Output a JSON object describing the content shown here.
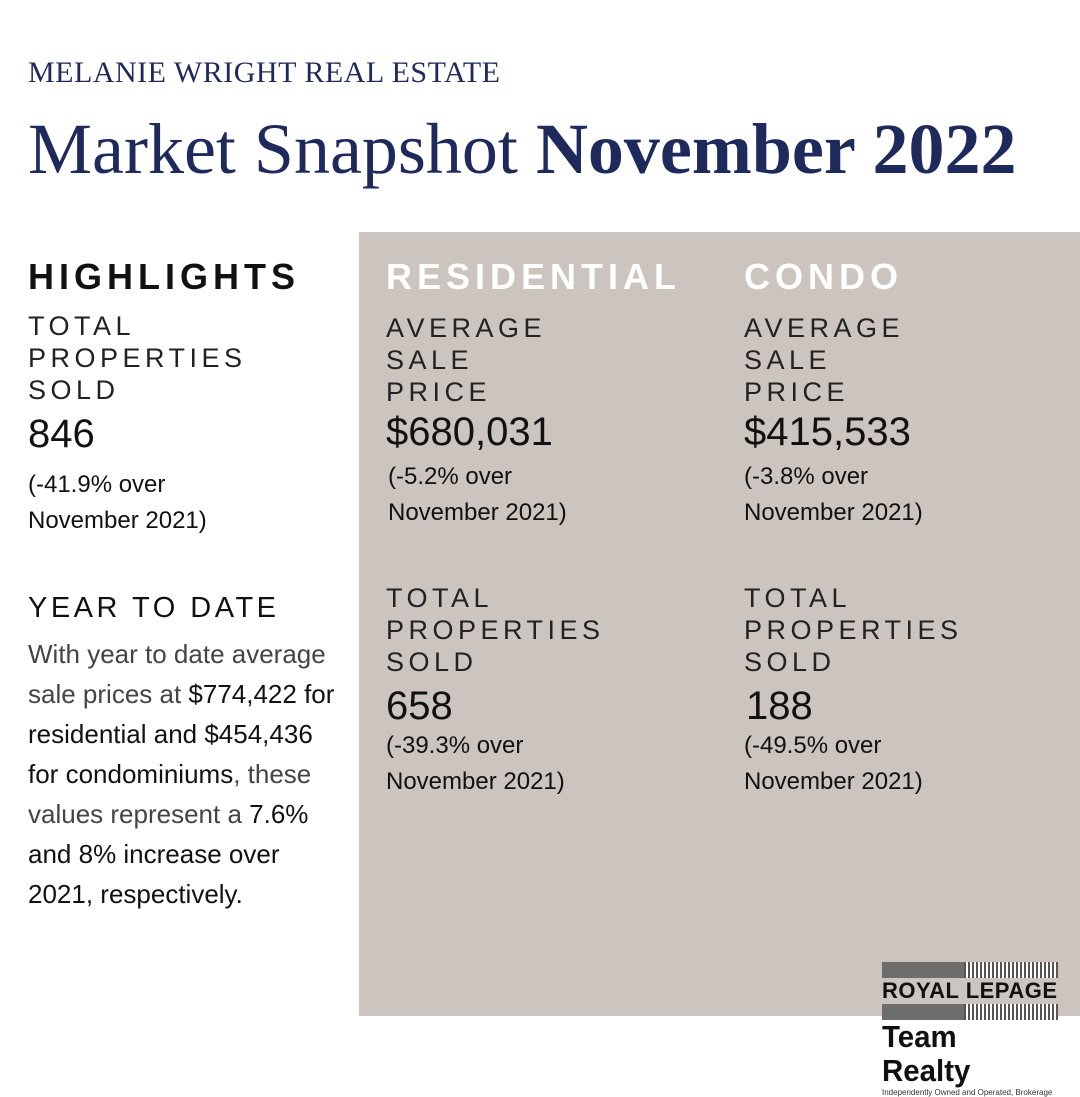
{
  "header": {
    "brand": "MELANIE WRIGHT REAL ESTATE",
    "title_regular": "Market Snapshot ",
    "title_bold": "November 2022"
  },
  "highlights": {
    "heading": "HIGHLIGHTS",
    "label_lines": [
      "TOTAL",
      "PROPERTIES",
      "SOLD"
    ],
    "value": "846",
    "change_lines": [
      "(-41.9% over",
      "November 2021)"
    ]
  },
  "residential": {
    "heading": "RESIDENTIAL",
    "avg_label_lines": [
      "AVERAGE",
      "SALE",
      "PRICE"
    ],
    "avg_value": "$680,031",
    "avg_change_lines": [
      "(-5.2% over",
      "November 2021)"
    ],
    "sold_label_lines": [
      "TOTAL",
      "PROPERTIES",
      "SOLD"
    ],
    "sold_value": "658",
    "sold_change_lines": [
      "(-39.3% over",
      "November 2021)"
    ]
  },
  "condo": {
    "heading": "CONDO",
    "avg_label_lines": [
      "AVERAGE",
      "SALE",
      "PRICE"
    ],
    "avg_value": "$415,533",
    "avg_change_lines": [
      "(-3.8% over",
      "November 2021)"
    ],
    "sold_label_lines": [
      "TOTAL",
      "PROPERTIES",
      "SOLD"
    ],
    "sold_value": "188",
    "sold_change_lines": [
      "(-49.5% over",
      "November 2021)"
    ]
  },
  "year_to_date": {
    "heading": "YEAR TO DATE",
    "parts": [
      "With year to date average sale prices at ",
      "$774,422 for residential and $454,436 for condominiums",
      ", these values represent a ",
      "7.6% and 8% increase over 2021, respectively."
    ]
  },
  "logo": {
    "line1": "ROYAL LEPAGE",
    "line2": "Team Realty",
    "line3": "Independently Owned and Operated, Brokerage"
  },
  "colors": {
    "navy": "#1f2a5c",
    "panel": "#cbc4bf"
  }
}
